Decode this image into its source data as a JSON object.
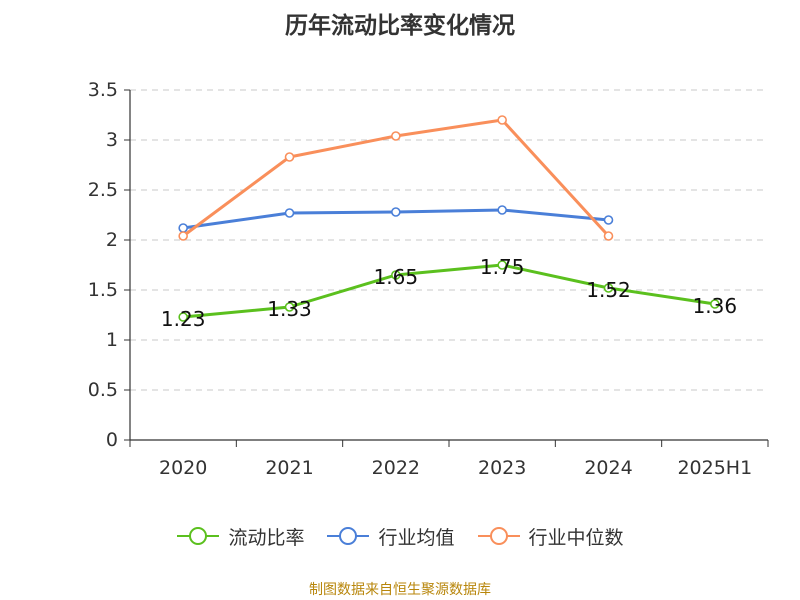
{
  "title": "历年流动比率变化情况",
  "footer": "制图数据来自恒生聚源数据库",
  "chart_data": {
    "type": "line",
    "title": "历年流动比率变化情况",
    "categories": [
      "2020",
      "2021",
      "2022",
      "2023",
      "2024",
      "2025H1"
    ],
    "ylim": [
      0,
      3.5
    ],
    "yticks": [
      0,
      0.5,
      1,
      1.5,
      2,
      2.5,
      3,
      3.5
    ],
    "ytick_labels": [
      "0",
      "0.5",
      "1",
      "1.5",
      "2",
      "2.5",
      "3",
      "3.5"
    ],
    "grid": true,
    "legend_position": "bottom",
    "series": [
      {
        "name": "流动比率",
        "color": "#5bc01e",
        "values": [
          1.23,
          1.33,
          1.65,
          1.75,
          1.52,
          1.36
        ],
        "labels": [
          "1.23",
          "1.33",
          "1.65",
          "1.75",
          "1.52",
          "1.36"
        ]
      },
      {
        "name": "行业均值",
        "color": "#4a7fd8",
        "values": [
          2.12,
          2.27,
          2.28,
          2.3,
          2.2,
          null
        ]
      },
      {
        "name": "行业中位数",
        "color": "#f98f5b",
        "values": [
          2.04,
          2.83,
          3.04,
          3.2,
          2.04,
          null
        ]
      }
    ]
  }
}
